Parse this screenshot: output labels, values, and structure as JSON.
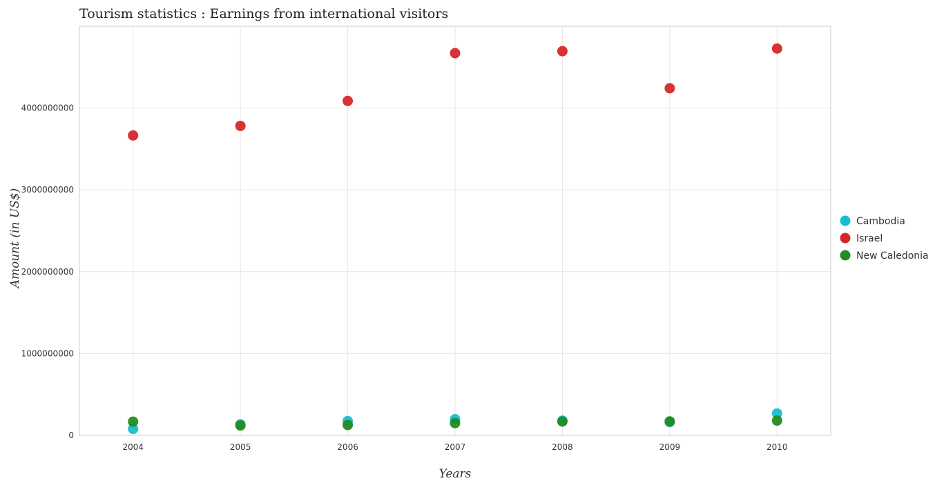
{
  "chart_data": {
    "type": "scatter",
    "title": "Tourism statistics : Earnings from international visitors",
    "xlabel": "Years",
    "ylabel": "Amount (in US$)",
    "categories": [
      "2004",
      "2005",
      "2006",
      "2007",
      "2008",
      "2009",
      "2010"
    ],
    "ylim": [
      0,
      5000000000
    ],
    "yticks": [
      0,
      1000000000,
      2000000000,
      3000000000,
      4000000000
    ],
    "ytick_labels": [
      "0",
      "1000000000",
      "2000000000",
      "3000000000",
      "4000000000"
    ],
    "grid": true,
    "legend_position": "right",
    "series": [
      {
        "name": "Cambodia",
        "color": "#17becf",
        "values": [
          80000000,
          135000000,
          175000000,
          198000000,
          180000000,
          163000000,
          268000000
        ]
      },
      {
        "name": "Israel",
        "color": "#d62728",
        "values": [
          3665000000,
          3782000000,
          4087000000,
          4671000000,
          4695000000,
          4242000000,
          4727000000
        ]
      },
      {
        "name": "New Caledonia",
        "color": "#228b22",
        "values": [
          168000000,
          121000000,
          127000000,
          150000000,
          170000000,
          171000000,
          181000000
        ]
      }
    ]
  }
}
